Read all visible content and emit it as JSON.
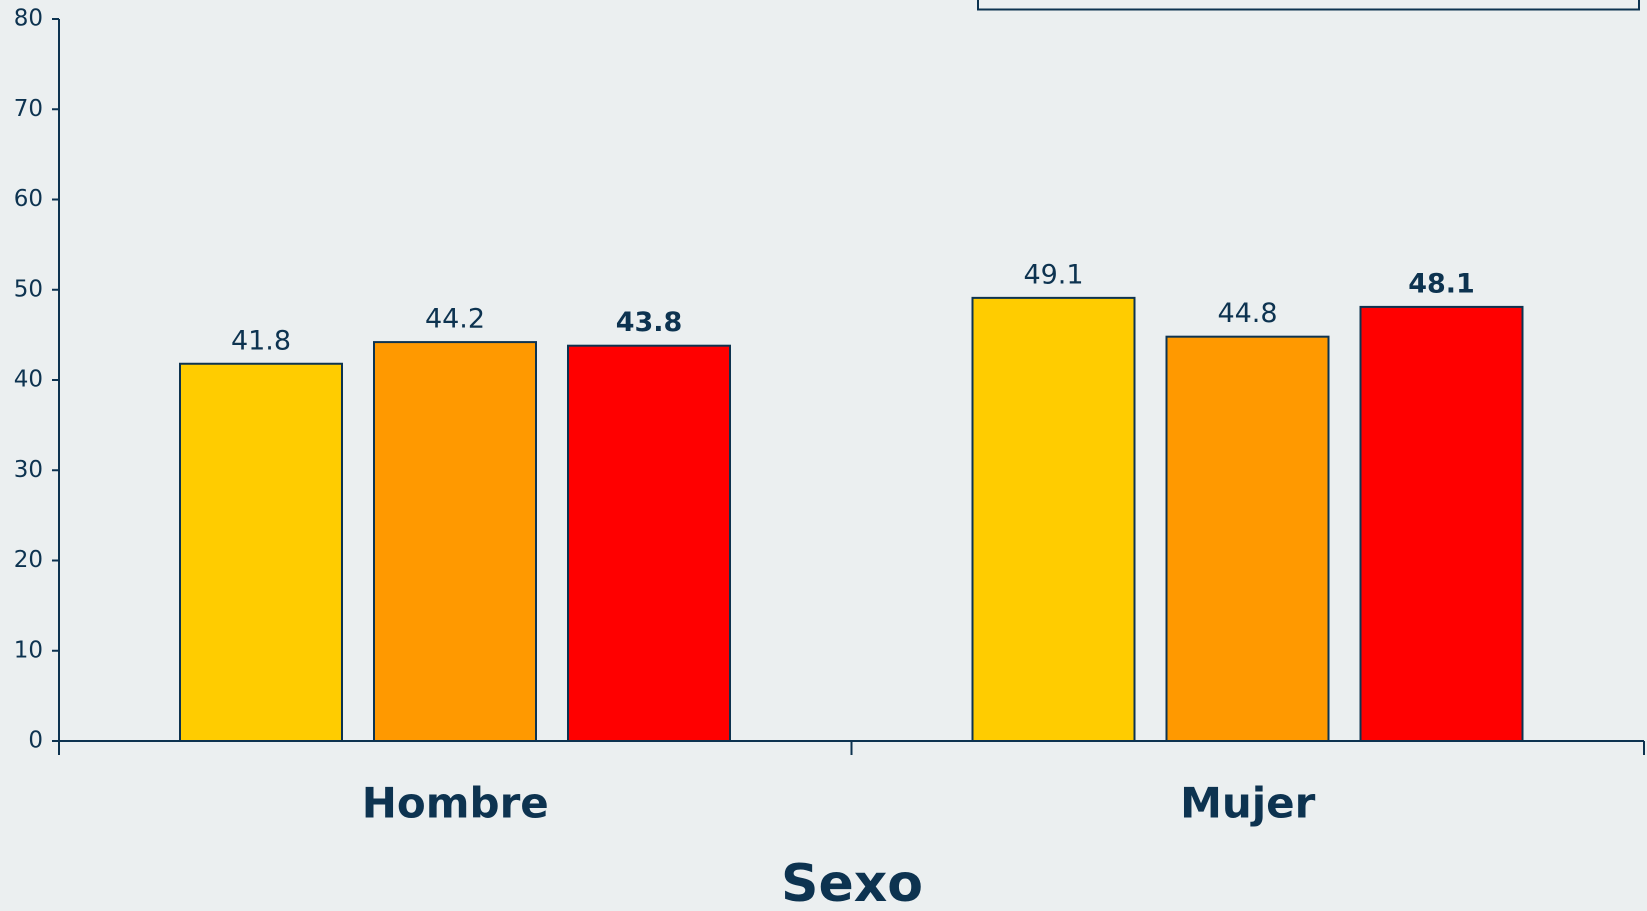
{
  "chart_data": {
    "type": "bar",
    "x_label": "Sexo",
    "categories": [
      "Hombre",
      "Mujer"
    ],
    "series": [
      {
        "color": "#ffcc00",
        "values": [
          41.8,
          49.1
        ]
      },
      {
        "color": "#ff9900",
        "values": [
          44.2,
          44.8
        ]
      },
      {
        "color": "#ff0000",
        "values": [
          43.8,
          48.1
        ],
        "bold_labels": true
      }
    ],
    "ylim": [
      0,
      80
    ],
    "yticks": [
      0,
      10,
      20,
      30,
      40,
      50,
      60,
      70,
      80
    ]
  }
}
